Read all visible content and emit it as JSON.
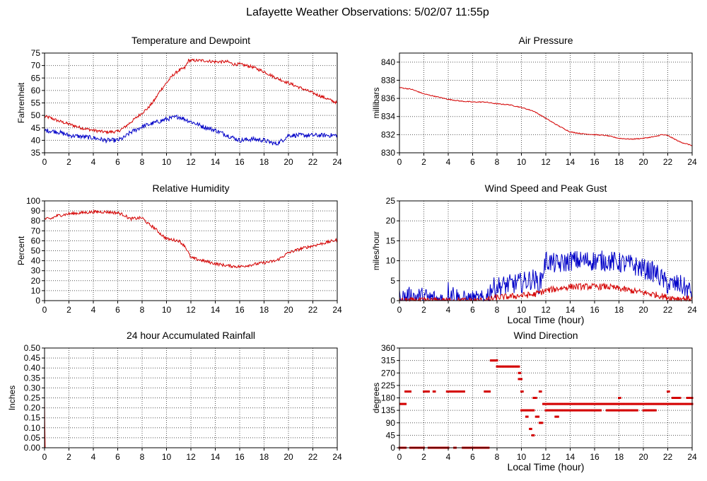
{
  "page": {
    "title": "Lafayette Weather Observations: 5/02/07 11:55p"
  },
  "colors": {
    "red": "#d40000",
    "blue": "#0000c8",
    "grid": "#555555",
    "axis": "#000000"
  },
  "chart_data": [
    {
      "id": "temperature",
      "type": "line",
      "title": "Temperature and Dewpoint",
      "ylabel": "Fahrenheit",
      "xlabel": "",
      "xlim": [
        0,
        24
      ],
      "ylim": [
        35,
        75
      ],
      "xticks": [
        0,
        2,
        4,
        6,
        8,
        10,
        12,
        14,
        16,
        18,
        20,
        22,
        24
      ],
      "yticks": [
        35,
        40,
        45,
        50,
        55,
        60,
        65,
        70,
        75
      ],
      "ytick_labels": [
        "35",
        "40",
        "45",
        "50",
        "55",
        "60",
        "65",
        "70",
        "75"
      ],
      "grid": true,
      "series": [
        {
          "color": "red",
          "noise": 0.6,
          "points": [
            [
              0,
              49.5
            ],
            [
              0.5,
              49
            ],
            [
              1,
              48
            ],
            [
              2,
              46.5
            ],
            [
              3,
              45
            ],
            [
              4,
              44
            ],
            [
              5,
              43.3
            ],
            [
              6,
              43.5
            ],
            [
              6.5,
              45
            ],
            [
              7,
              47
            ],
            [
              8,
              51
            ],
            [
              8.5,
              53
            ],
            [
              9,
              56
            ],
            [
              9.5,
              60
            ],
            [
              10,
              63
            ],
            [
              10.5,
              66
            ],
            [
              11,
              68
            ],
            [
              11.5,
              69
            ],
            [
              11.8,
              72
            ],
            [
              12,
              72
            ],
            [
              13,
              72
            ],
            [
              14,
              71.5
            ],
            [
              15,
              71.5
            ],
            [
              15.5,
              70.5
            ],
            [
              16,
              70.5
            ],
            [
              17,
              69.5
            ],
            [
              18,
              67.5
            ],
            [
              19,
              65
            ],
            [
              20,
              63
            ],
            [
              21,
              61
            ],
            [
              22,
              59
            ],
            [
              23,
              57
            ],
            [
              24,
              55
            ]
          ]
        },
        {
          "color": "blue",
          "noise": 0.9,
          "points": [
            [
              0,
              44
            ],
            [
              1,
              43.5
            ],
            [
              2,
              42
            ],
            [
              3,
              41.5
            ],
            [
              4,
              41
            ],
            [
              5,
              40
            ],
            [
              6,
              40
            ],
            [
              6.5,
              41
            ],
            [
              7,
              43
            ],
            [
              8,
              45.5
            ],
            [
              9,
              47
            ],
            [
              10,
              48.5
            ],
            [
              11,
              49.5
            ],
            [
              12,
              47.5
            ],
            [
              13,
              45.5
            ],
            [
              14,
              44
            ],
            [
              15,
              42
            ],
            [
              16,
              40
            ],
            [
              17,
              40.5
            ],
            [
              18,
              40
            ],
            [
              19,
              38.5
            ],
            [
              19.5,
              40
            ],
            [
              20,
              42
            ],
            [
              21,
              42
            ],
            [
              22,
              42
            ],
            [
              23,
              42
            ],
            [
              24,
              42
            ]
          ]
        }
      ]
    },
    {
      "id": "pressure",
      "type": "line",
      "title": "Air Pressure",
      "ylabel": "millibars",
      "xlabel": "",
      "xlim": [
        0,
        24
      ],
      "ylim": [
        830,
        841
      ],
      "xticks": [
        0,
        2,
        4,
        6,
        8,
        10,
        12,
        14,
        16,
        18,
        20,
        22,
        24
      ],
      "yticks": [
        830,
        832,
        834,
        836,
        838,
        840
      ],
      "ytick_labels": [
        "830",
        "832",
        "834",
        "836",
        "838",
        "840"
      ],
      "grid": true,
      "series": [
        {
          "color": "red",
          "noise": 0.05,
          "points": [
            [
              0,
              837.2
            ],
            [
              1,
              837
            ],
            [
              2,
              836.5
            ],
            [
              3,
              836.2
            ],
            [
              4,
              835.9
            ],
            [
              5,
              835.7
            ],
            [
              6,
              835.6
            ],
            [
              7,
              835.6
            ],
            [
              8,
              835.4
            ],
            [
              9,
              835.3
            ],
            [
              10,
              835
            ],
            [
              11,
              834.6
            ],
            [
              12,
              833.8
            ],
            [
              13,
              833
            ],
            [
              14,
              832.3
            ],
            [
              15,
              832.1
            ],
            [
              16,
              832
            ],
            [
              17,
              831.9
            ],
            [
              18,
              831.6
            ],
            [
              19,
              831.5
            ],
            [
              20,
              831.6
            ],
            [
              21,
              831.8
            ],
            [
              21.5,
              832
            ],
            [
              22,
              831.9
            ],
            [
              23,
              831.2
            ],
            [
              24,
              830.8
            ]
          ]
        }
      ]
    },
    {
      "id": "humidity",
      "type": "line",
      "title": "Relative Humidity",
      "ylabel": "Percent",
      "xlabel": "",
      "xlim": [
        0,
        24
      ],
      "ylim": [
        0,
        100
      ],
      "xticks": [
        0,
        2,
        4,
        6,
        8,
        10,
        12,
        14,
        16,
        18,
        20,
        22,
        24
      ],
      "yticks": [
        0,
        10,
        20,
        30,
        40,
        50,
        60,
        70,
        80,
        90,
        100
      ],
      "ytick_labels": [
        "0",
        "10",
        "20",
        "30",
        "40",
        "50",
        "60",
        "70",
        "80",
        "90",
        "100"
      ],
      "grid": true,
      "series": [
        {
          "color": "red",
          "noise": 1.5,
          "points": [
            [
              0,
              82
            ],
            [
              0.5,
              82
            ],
            [
              1,
              85
            ],
            [
              2,
              87
            ],
            [
              3,
              88
            ],
            [
              4,
              89
            ],
            [
              5,
              89
            ],
            [
              6,
              88
            ],
            [
              6.5,
              86
            ],
            [
              7,
              82
            ],
            [
              8,
              83
            ],
            [
              8.5,
              77
            ],
            [
              9,
              73
            ],
            [
              9.5,
              67
            ],
            [
              10,
              62
            ],
            [
              11,
              60
            ],
            [
              11.5,
              55
            ],
            [
              12,
              43
            ],
            [
              13,
              40
            ],
            [
              14,
              37
            ],
            [
              15,
              35
            ],
            [
              16,
              34
            ],
            [
              17,
              36
            ],
            [
              18,
              38
            ],
            [
              19,
              40
            ],
            [
              19.5,
              44
            ],
            [
              20,
              48
            ],
            [
              21,
              52
            ],
            [
              22,
              55
            ],
            [
              23,
              58
            ],
            [
              24,
              61
            ]
          ]
        }
      ]
    },
    {
      "id": "wind_speed",
      "type": "line",
      "title": "Wind Speed and Peak Gust",
      "ylabel": "miles/hour",
      "xlabel": "Local Time (hour)",
      "xlim": [
        0,
        24
      ],
      "ylim": [
        0,
        25
      ],
      "xticks": [
        0,
        2,
        4,
        6,
        8,
        10,
        12,
        14,
        16,
        18,
        20,
        22,
        24
      ],
      "yticks": [
        0,
        5,
        10,
        15,
        20,
        25
      ],
      "ytick_labels": [
        "0",
        "5",
        "10",
        "15",
        "20",
        "25"
      ],
      "grid": true,
      "series": [
        {
          "color": "blue",
          "noise": 2.6,
          "floor": 0,
          "points": [
            [
              0,
              0.5
            ],
            [
              1,
              1
            ],
            [
              2,
              0.8
            ],
            [
              3,
              0.3
            ],
            [
              3.8,
              0
            ],
            [
              4,
              2.5
            ],
            [
              4.5,
              1.5
            ],
            [
              5,
              0
            ],
            [
              6,
              0
            ],
            [
              7,
              0
            ],
            [
              7.5,
              3
            ],
            [
              8,
              3.5
            ],
            [
              9,
              4
            ],
            [
              10,
              4.5
            ],
            [
              11,
              5.5
            ],
            [
              11.5,
              4
            ],
            [
              12,
              10
            ],
            [
              13,
              9
            ],
            [
              14,
              10
            ],
            [
              15,
              10
            ],
            [
              16,
              10
            ],
            [
              17,
              10
            ],
            [
              18,
              9.5
            ],
            [
              19,
              9
            ],
            [
              20,
              8
            ],
            [
              21,
              7
            ],
            [
              22,
              4
            ],
            [
              23,
              4
            ],
            [
              24,
              2
            ]
          ]
        },
        {
          "color": "red",
          "noise": 0.8,
          "floor": 0,
          "points": [
            [
              0,
              0
            ],
            [
              6,
              0
            ],
            [
              7,
              0
            ],
            [
              8,
              0.8
            ],
            [
              9,
              1
            ],
            [
              10,
              1.3
            ],
            [
              11,
              1.5
            ],
            [
              12,
              2.5
            ],
            [
              13,
              3
            ],
            [
              14,
              3.5
            ],
            [
              15,
              3.5
            ],
            [
              16,
              3.5
            ],
            [
              17,
              3.5
            ],
            [
              18,
              3
            ],
            [
              19,
              2.5
            ],
            [
              20,
              2
            ],
            [
              21,
              1.5
            ],
            [
              22,
              0.8
            ],
            [
              23,
              0.5
            ],
            [
              24,
              0.5
            ]
          ]
        }
      ]
    },
    {
      "id": "rainfall",
      "type": "line",
      "title": "24 hour Accumulated Rainfall",
      "ylabel": "Inches",
      "xlabel": "",
      "xlim": [
        0,
        24
      ],
      "ylim": [
        0,
        0.5
      ],
      "xticks": [
        0,
        2,
        4,
        6,
        8,
        10,
        12,
        14,
        16,
        18,
        20,
        22,
        24
      ],
      "yticks": [
        0,
        0.05,
        0.1,
        0.15,
        0.2,
        0.25,
        0.3,
        0.35,
        0.4,
        0.45,
        0.5
      ],
      "ytick_labels": [
        "0.00",
        "0.05",
        "0.10",
        "0.15",
        "0.20",
        "0.25",
        "0.30",
        "0.35",
        "0.40",
        "0.45",
        "0.50"
      ],
      "grid": true,
      "series": [
        {
          "color": "red",
          "noise": 0,
          "points": [
            [
              0,
              0.25
            ],
            [
              0.02,
              0.13
            ],
            [
              0.05,
              0
            ],
            [
              24,
              0
            ]
          ]
        }
      ]
    },
    {
      "id": "wind_direction",
      "type": "scatter",
      "title": "Wind Direction",
      "ylabel": "degrees",
      "xlabel": "Local Time (hour)",
      "xlim": [
        0,
        24
      ],
      "ylim": [
        0,
        360
      ],
      "xticks": [
        0,
        2,
        4,
        6,
        8,
        10,
        12,
        14,
        16,
        18,
        20,
        22,
        24
      ],
      "yticks": [
        0,
        45,
        90,
        135,
        180,
        225,
        270,
        315,
        360
      ],
      "ytick_labels": [
        "0",
        "45",
        "90",
        "135",
        "180",
        "225",
        "270",
        "315",
        "360"
      ],
      "grid": true,
      "runs": [
        {
          "x0": 0,
          "x1": 0.5,
          "y": 0
        },
        {
          "x0": 0.1,
          "x1": 0.5,
          "y": 158
        },
        {
          "x0": 0.5,
          "x1": 0.9,
          "y": 203
        },
        {
          "x0": 0.9,
          "x1": 2.0,
          "y": 0
        },
        {
          "x0": 2.0,
          "x1": 2.4,
          "y": 203
        },
        {
          "x0": 2.4,
          "x1": 4.0,
          "y": 0
        },
        {
          "x0": 2.8,
          "x1": 2.9,
          "y": 203
        },
        {
          "x0": 3.9,
          "x1": 5.3,
          "y": 203
        },
        {
          "x0": 4.5,
          "x1": 4.6,
          "y": 0
        },
        {
          "x0": 5.2,
          "x1": 7.3,
          "y": 0
        },
        {
          "x0": 7.0,
          "x1": 7.4,
          "y": 203
        },
        {
          "x0": 7.5,
          "x1": 8.0,
          "y": 315
        },
        {
          "x0": 8.0,
          "x1": 9.8,
          "y": 293
        },
        {
          "x0": 9.8,
          "x1": 9.9,
          "y": 270
        },
        {
          "x0": 9.8,
          "x1": 10.0,
          "y": 248
        },
        {
          "x0": 10.0,
          "x1": 11.0,
          "y": 135
        },
        {
          "x0": 10.0,
          "x1": 10.1,
          "y": 203
        },
        {
          "x0": 10.4,
          "x1": 10.5,
          "y": 112
        },
        {
          "x0": 10.7,
          "x1": 10.8,
          "y": 68
        },
        {
          "x0": 10.9,
          "x1": 11.0,
          "y": 45
        },
        {
          "x0": 11.0,
          "x1": 11.2,
          "y": 180
        },
        {
          "x0": 11.2,
          "x1": 11.4,
          "y": 112
        },
        {
          "x0": 11.5,
          "x1": 11.6,
          "y": 203
        },
        {
          "x0": 11.5,
          "x1": 11.7,
          "y": 90
        },
        {
          "x0": 11.8,
          "x1": 24.0,
          "y": 158
        },
        {
          "x0": 12.0,
          "x1": 16.5,
          "y": 135
        },
        {
          "x0": 12.8,
          "x1": 13.0,
          "y": 112
        },
        {
          "x0": 17.0,
          "x1": 19.5,
          "y": 135
        },
        {
          "x0": 18.0,
          "x1": 18.1,
          "y": 180
        },
        {
          "x0": 20.0,
          "x1": 21.0,
          "y": 135
        },
        {
          "x0": 22.0,
          "x1": 22.1,
          "y": 203
        },
        {
          "x0": 22.4,
          "x1": 23.0,
          "y": 180
        },
        {
          "x0": 23.6,
          "x1": 24.0,
          "y": 180
        }
      ]
    }
  ]
}
